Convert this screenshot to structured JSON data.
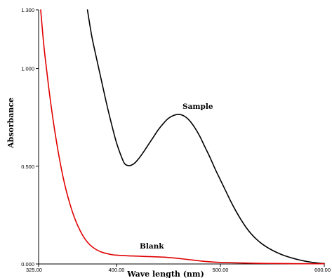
{
  "chart_data": {
    "type": "line",
    "xlabel": "Wave length (nm)",
    "ylabel": "Absorbance",
    "xlim": [
      325,
      600
    ],
    "ylim": [
      0,
      1.3
    ],
    "x_ticks": [
      "325.00",
      "400.00",
      "500.00",
      "600.00"
    ],
    "x_tick_values": [
      325,
      400,
      500,
      600
    ],
    "y_ticks": [
      "0.000",
      "0.500",
      "1.000",
      "1.300"
    ],
    "y_tick_values": [
      0,
      0.5,
      1.0,
      1.3
    ],
    "grid": false,
    "series": [
      {
        "name": "Sample",
        "color": "#000000",
        "x": [
          372,
          376,
          380,
          385,
          390,
          395,
          400,
          405,
          408,
          412,
          416,
          420,
          425,
          430,
          435,
          440,
          445,
          450,
          455,
          460,
          465,
          470,
          475,
          480,
          485,
          490,
          495,
          500,
          505,
          510,
          515,
          520,
          525,
          530,
          535,
          540,
          545,
          550,
          555,
          560,
          565,
          570,
          575,
          580,
          585,
          590,
          595,
          600
        ],
        "values": [
          1.3,
          1.17,
          1.07,
          0.95,
          0.83,
          0.72,
          0.62,
          0.545,
          0.512,
          0.503,
          0.51,
          0.53,
          0.565,
          0.605,
          0.645,
          0.685,
          0.718,
          0.745,
          0.76,
          0.765,
          0.757,
          0.735,
          0.7,
          0.655,
          0.6,
          0.545,
          0.485,
          0.43,
          0.375,
          0.32,
          0.27,
          0.225,
          0.185,
          0.152,
          0.125,
          0.103,
          0.085,
          0.07,
          0.057,
          0.046,
          0.037,
          0.029,
          0.022,
          0.016,
          0.011,
          0.007,
          0.004,
          0.002
        ]
      },
      {
        "name": "Blank",
        "color": "#e00000",
        "x": [
          327,
          330,
          333,
          336,
          340,
          345,
          350,
          355,
          360,
          365,
          370,
          375,
          380,
          385,
          390,
          395,
          400,
          410,
          420,
          430,
          440,
          450,
          460,
          470,
          480,
          490,
          500,
          520,
          540,
          560,
          580,
          600
        ],
        "values": [
          1.3,
          1.12,
          0.98,
          0.85,
          0.7,
          0.54,
          0.41,
          0.31,
          0.23,
          0.17,
          0.125,
          0.095,
          0.075,
          0.062,
          0.054,
          0.048,
          0.045,
          0.042,
          0.04,
          0.038,
          0.036,
          0.033,
          0.028,
          0.022,
          0.016,
          0.011,
          0.008,
          0.005,
          0.003,
          0.002,
          0.001,
          0.001
        ]
      }
    ]
  }
}
